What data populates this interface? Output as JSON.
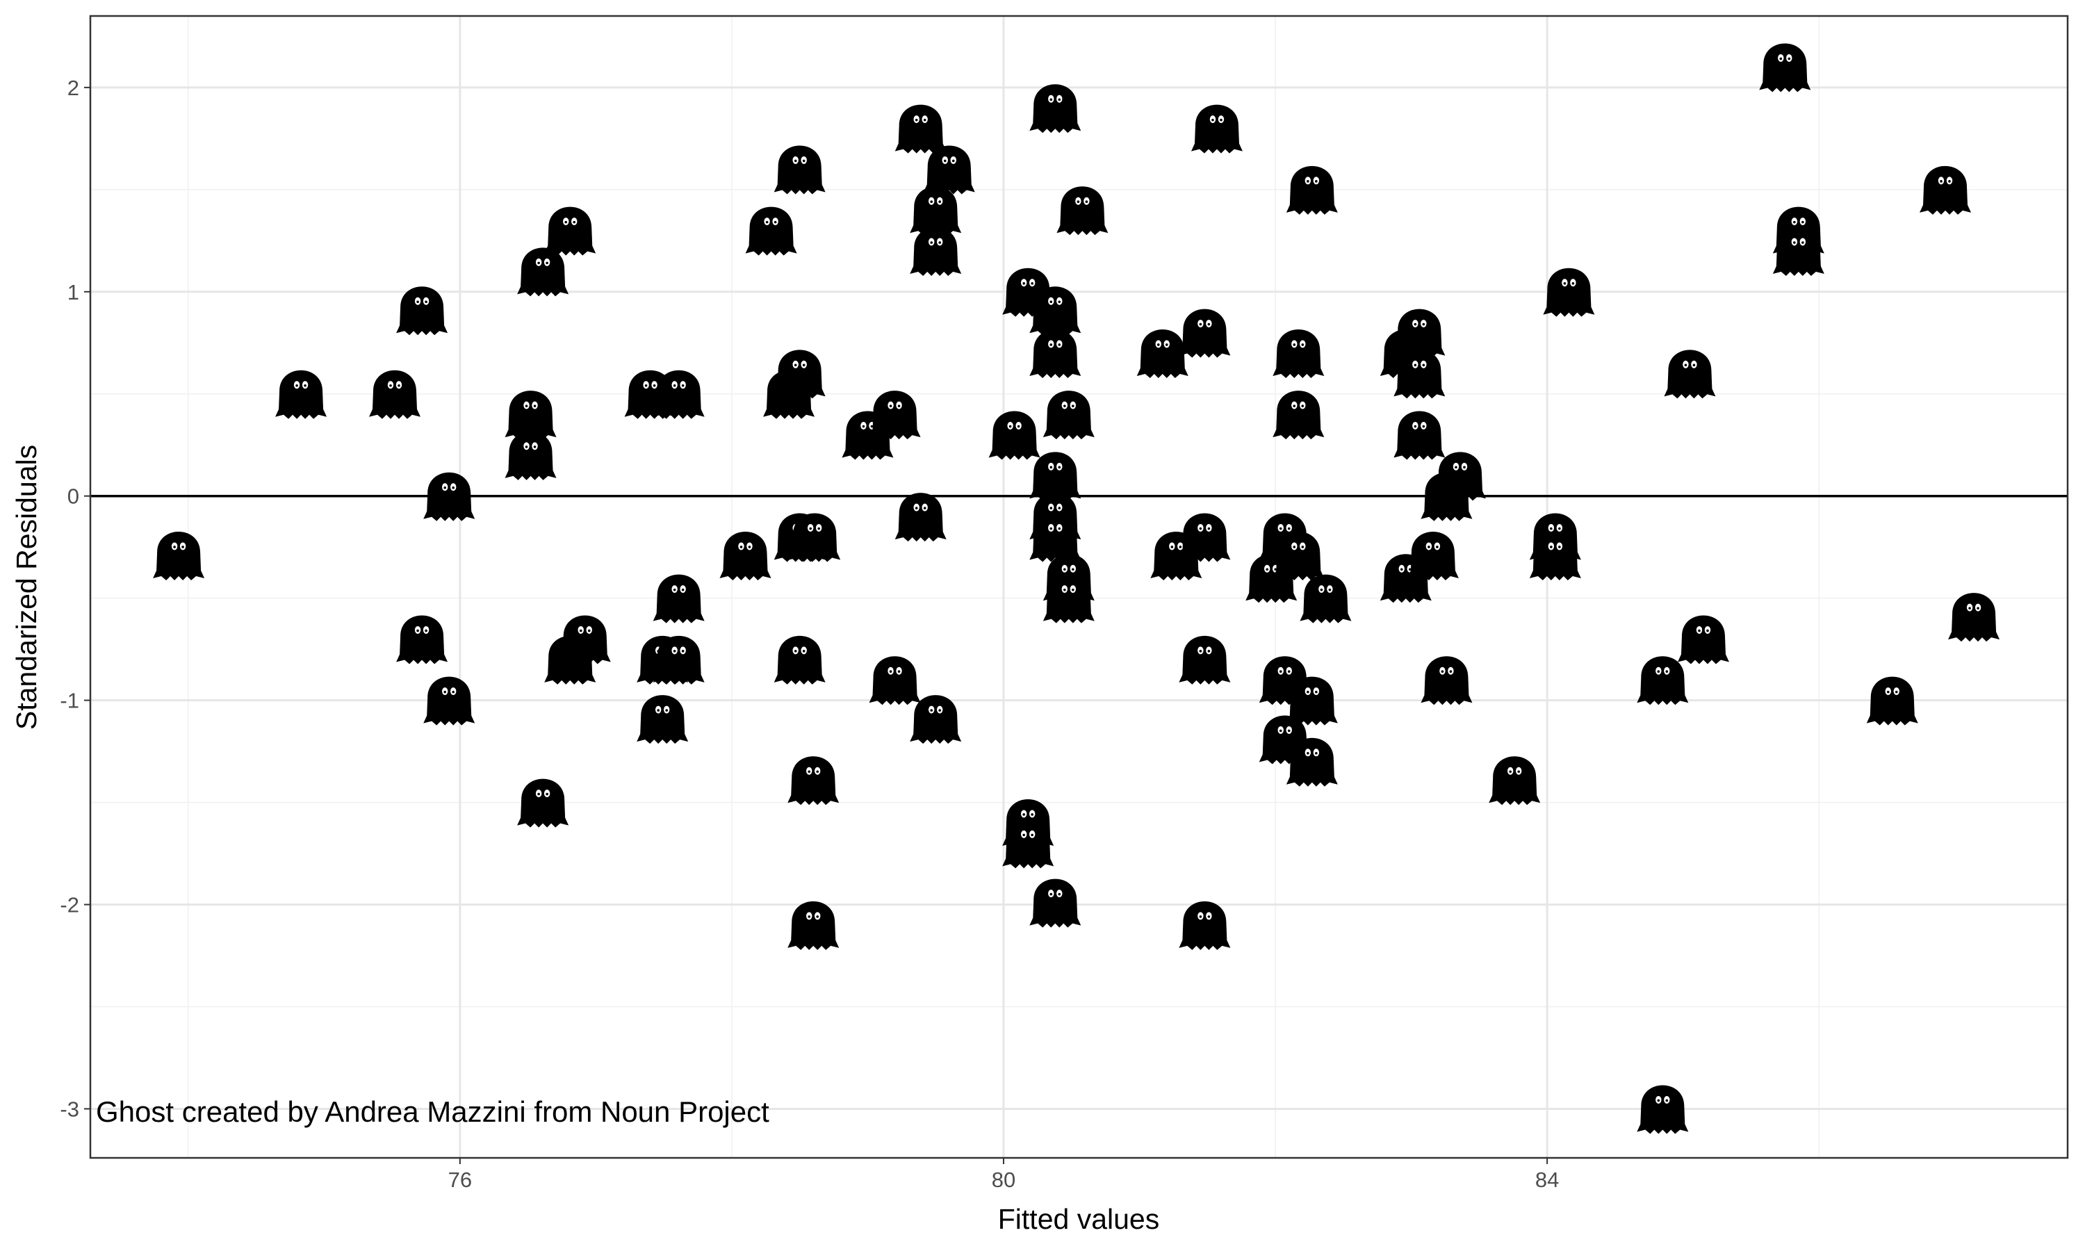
{
  "chart_data": {
    "type": "scatter",
    "xlabel": "Fitted values",
    "ylabel": "Standarized Residuals",
    "annotation": "Ghost created by Andrea Mazzini from Noun Project",
    "marker": "ghost",
    "color": "#000000",
    "grid": true,
    "hline": 0,
    "xlim": [
      73.28,
      87.83
    ],
    "ylim": [
      -3.24,
      2.35
    ],
    "xticks": [
      76,
      80,
      84
    ],
    "yticks": [
      -3,
      -2,
      -1,
      0,
      1,
      2
    ],
    "xminorticks": [
      74,
      78,
      82,
      86
    ],
    "yminorticks": [
      -2.5,
      -1.5,
      -0.5,
      0.5,
      1.5
    ],
    "x": [
      73.93,
      74.83,
      75.52,
      75.72,
      75.72,
      75.92,
      75.92,
      76.52,
      76.52,
      76.61,
      76.61,
      76.81,
      76.81,
      76.92,
      77.4,
      77.61,
      77.49,
      77.61,
      77.61,
      77.49,
      78.1,
      78.29,
      78.42,
      78.5,
      78.5,
      78.5,
      78.61,
      78.5,
      78.6,
      78.6,
      79.0,
      79.2,
      79.2,
      79.39,
      79.6,
      79.5,
      79.5,
      79.39,
      79.5,
      80.08,
      80.18,
      80.18,
      80.18,
      80.38,
      80.38,
      80.38,
      80.38,
      80.38,
      80.38,
      80.48,
      80.48,
      80.48,
      80.58,
      80.38,
      81.17,
      81.27,
      81.48,
      81.48,
      81.48,
      81.48,
      81.57,
      81.97,
      82.07,
      82.17,
      82.07,
      82.07,
      82.17,
      82.17,
      82.27,
      82.27,
      82.27,
      82.37,
      82.96,
      83.06,
      83.06,
      83.06,
      82.96,
      83.16,
      83.26,
      83.36,
      83.26,
      83.76,
      84.06,
      84.06,
      84.16,
      84.85,
      84.85,
      85.05,
      85.15,
      85.75,
      85.85,
      85.85,
      86.54,
      86.93,
      87.14
    ],
    "values": [
      -0.29,
      0.5,
      0.5,
      0.91,
      -0.7,
      0.0,
      -1.0,
      0.4,
      0.2,
      1.1,
      -1.5,
      1.3,
      -0.8,
      -0.7,
      0.5,
      0.5,
      -0.8,
      -0.8,
      -0.5,
      -1.09,
      -0.29,
      1.3,
      0.5,
      0.6,
      1.6,
      -0.2,
      -0.2,
      -0.8,
      -1.39,
      -2.1,
      0.3,
      0.4,
      -0.9,
      1.8,
      1.6,
      1.4,
      1.2,
      -0.1,
      -1.09,
      0.3,
      1.0,
      -1.6,
      -1.7,
      1.9,
      0.91,
      0.7,
      0.1,
      -0.1,
      -0.2,
      -0.4,
      -0.5,
      0.4,
      1.4,
      -1.99,
      0.7,
      -0.29,
      0.8,
      -0.2,
      -0.8,
      -2.1,
      1.8,
      -0.4,
      -0.2,
      -0.29,
      -0.9,
      -1.19,
      0.7,
      0.4,
      1.5,
      -1.0,
      -1.3,
      -0.5,
      0.7,
      0.8,
      0.6,
      0.3,
      -0.4,
      -0.29,
      0.0,
      0.1,
      -0.9,
      -1.39,
      -0.2,
      -0.29,
      1.0,
      -0.9,
      -3.0,
      0.6,
      -0.7,
      2.1,
      1.3,
      1.2,
      -1.0,
      1.5,
      -0.59
    ]
  }
}
